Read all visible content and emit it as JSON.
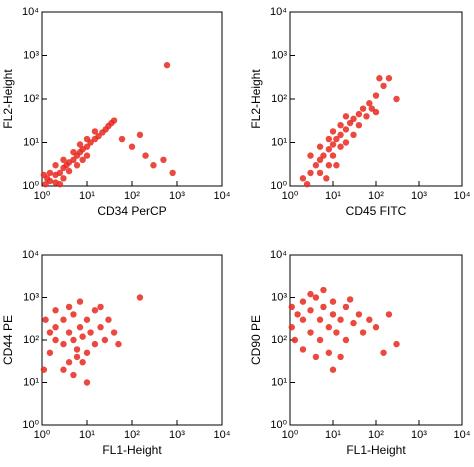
{
  "chart_data": [
    {
      "type": "scatter",
      "xlabel": "CD34 PerCP",
      "ylabel": "FL2-Height",
      "xlog": true,
      "ylog": true,
      "xlim": [
        1,
        10000
      ],
      "ylim": [
        1,
        10000
      ],
      "xticks": [
        {
          "value": 1,
          "label": "10⁰"
        },
        {
          "value": 10,
          "label": "10¹"
        },
        {
          "value": 100,
          "label": "10²"
        },
        {
          "value": 1000,
          "label": "10³"
        },
        {
          "value": 10000,
          "label": "10⁴"
        }
      ],
      "yticks": [
        {
          "value": 1,
          "label": "10⁰"
        },
        {
          "value": 10,
          "label": "10¹"
        },
        {
          "value": 100,
          "label": "10²"
        },
        {
          "value": 1000,
          "label": "10³"
        },
        {
          "value": 10000,
          "label": "10⁴"
        }
      ],
      "series": [
        {
          "color": "#e8281e",
          "x": [
            1.2,
            1.5,
            2,
            2.5,
            3,
            3.5,
            4,
            5,
            6,
            7,
            8,
            10,
            12,
            15,
            18,
            22,
            26,
            30,
            35,
            40,
            2,
            3,
            4,
            6,
            8,
            10,
            1.5,
            2,
            3,
            5,
            7,
            10,
            15,
            1.3,
            60,
            100,
            200,
            300,
            500,
            800,
            150,
            600,
            1.1,
            2.5
          ],
          "y": [
            1.1,
            1.3,
            1.8,
            2,
            2.6,
            3,
            3.5,
            4,
            5,
            6,
            7,
            8,
            10,
            12,
            14,
            17,
            20,
            24,
            28,
            32,
            1.2,
            1.5,
            2.2,
            3,
            4,
            5,
            2,
            3,
            4,
            6,
            9,
            12,
            18,
            1.5,
            12,
            8,
            5,
            3,
            4,
            2,
            15,
            600,
            1.8,
            1.1
          ]
        }
      ]
    },
    {
      "type": "scatter",
      "xlabel": "CD45 FITC",
      "ylabel": "FL2-Height",
      "xlog": true,
      "ylog": true,
      "xlim": [
        1,
        10000
      ],
      "ylim": [
        1,
        10000
      ],
      "xticks": [
        {
          "value": 1,
          "label": "10⁰"
        },
        {
          "value": 10,
          "label": "10¹"
        },
        {
          "value": 100,
          "label": "10²"
        },
        {
          "value": 1000,
          "label": "10³"
        },
        {
          "value": 10000,
          "label": "10⁴"
        }
      ],
      "yticks": [
        {
          "value": 1,
          "label": "10⁰"
        },
        {
          "value": 10,
          "label": "10¹"
        },
        {
          "value": 100,
          "label": "10²"
        },
        {
          "value": 1000,
          "label": "10³"
        },
        {
          "value": 10000,
          "label": "10⁴"
        }
      ],
      "series": [
        {
          "color": "#e8281e",
          "x": [
            2,
            3,
            4,
            5,
            6,
            8,
            10,
            12,
            15,
            20,
            25,
            30,
            40,
            50,
            70,
            100,
            150,
            200,
            5,
            8,
            10,
            15,
            20,
            30,
            3,
            5,
            8,
            10,
            15,
            20,
            40,
            60,
            80,
            100,
            120,
            300,
            2.5,
            7,
            12
          ],
          "y": [
            1.5,
            2,
            3,
            4,
            5,
            7,
            9,
            12,
            15,
            20,
            28,
            35,
            45,
            60,
            80,
            120,
            200,
            300,
            2,
            3,
            5,
            8,
            10,
            15,
            5,
            8,
            12,
            18,
            25,
            40,
            25,
            40,
            60,
            50,
            300,
            100,
            1.1,
            1.5,
            3
          ]
        }
      ]
    },
    {
      "type": "scatter",
      "xlabel": "FL1-Height",
      "ylabel": "CD44 PE",
      "xlog": true,
      "ylog": true,
      "xlim": [
        1,
        10000
      ],
      "ylim": [
        1,
        10000
      ],
      "xticks": [
        {
          "value": 1,
          "label": "10⁰"
        },
        {
          "value": 10,
          "label": "10¹"
        },
        {
          "value": 100,
          "label": "10²"
        },
        {
          "value": 1000,
          "label": "10³"
        },
        {
          "value": 10000,
          "label": "10⁴"
        }
      ],
      "yticks": [
        {
          "value": 1,
          "label": "10⁰"
        },
        {
          "value": 10,
          "label": "10¹"
        },
        {
          "value": 100,
          "label": "10²"
        },
        {
          "value": 1000,
          "label": "10³"
        },
        {
          "value": 10000,
          "label": "10⁴"
        }
      ],
      "series": [
        {
          "color": "#e8281e",
          "x": [
            1.1,
            1.5,
            2,
            2,
            3,
            3,
            4,
            5,
            5,
            6,
            7,
            8,
            10,
            10,
            12,
            15,
            15,
            20,
            25,
            30,
            40,
            50,
            3,
            5,
            8,
            10,
            2,
            4,
            7,
            1.2,
            1.5,
            6,
            4,
            20,
            150
          ],
          "y": [
            20,
            50,
            100,
            200,
            80,
            300,
            150,
            100,
            400,
            60,
            200,
            120,
            300,
            50,
            150,
            500,
            80,
            200,
            100,
            300,
            150,
            80,
            20,
            15,
            30,
            10,
            500,
            600,
            800,
            300,
            150,
            40,
            30,
            600,
            1000
          ]
        }
      ]
    },
    {
      "type": "scatter",
      "xlabel": "FL1-Height",
      "ylabel": "CD90 PE",
      "xlog": true,
      "ylog": true,
      "xlim": [
        1,
        10000
      ],
      "ylim": [
        1,
        10000
      ],
      "xticks": [
        {
          "value": 1,
          "label": "10⁰"
        },
        {
          "value": 10,
          "label": "10¹"
        },
        {
          "value": 100,
          "label": "10²"
        },
        {
          "value": 1000,
          "label": "10³"
        },
        {
          "value": 10000,
          "label": "10⁴"
        }
      ],
      "yticks": [
        {
          "value": 1,
          "label": "10⁰"
        },
        {
          "value": 10,
          "label": "10¹"
        },
        {
          "value": 100,
          "label": "10²"
        },
        {
          "value": 1000,
          "label": "10³"
        },
        {
          "value": 10000,
          "label": "10⁴"
        }
      ],
      "series": [
        {
          "color": "#e8281e",
          "x": [
            1.1,
            1.1,
            1.5,
            2,
            2,
            3,
            3,
            4,
            5,
            5,
            6,
            8,
            10,
            10,
            12,
            15,
            20,
            20,
            30,
            40,
            50,
            70,
            100,
            2,
            4,
            8,
            10,
            15,
            1.3,
            3,
            6,
            25,
            200,
            300,
            150
          ],
          "y": [
            200,
            600,
            400,
            300,
            800,
            150,
            500,
            1000,
            300,
            100,
            600,
            200,
            400,
            800,
            150,
            300,
            600,
            100,
            250,
            400,
            150,
            300,
            200,
            60,
            40,
            50,
            20,
            40,
            100,
            1200,
            1500,
            900,
            400,
            80,
            50
          ]
        }
      ]
    }
  ]
}
